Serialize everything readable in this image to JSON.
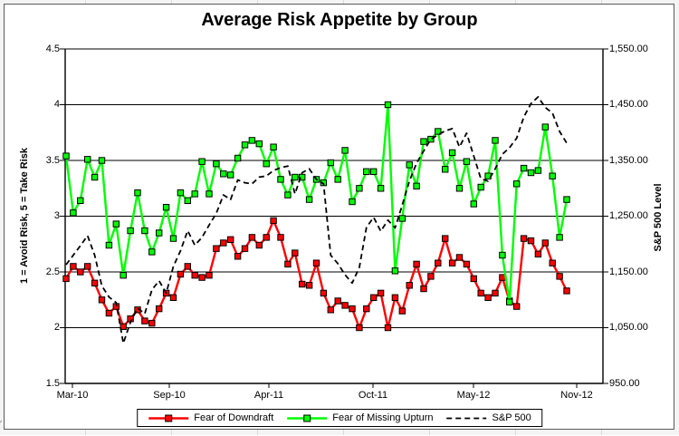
{
  "chart_data": {
    "type": "line",
    "title": "Average Risk Appetite by Group",
    "legend_position": "bottom",
    "grid": "horizontal",
    "left_axis": {
      "label": "1 = Avoid Risk, 5 = Take Risk",
      "range": [
        1.5,
        4.5
      ],
      "ticks": [
        "4.5",
        "4",
        "3.5",
        "3",
        "2.5",
        "2",
        "1.5"
      ]
    },
    "right_axis": {
      "label": "S&P 500 Level",
      "range": [
        950,
        1550
      ],
      "ticks": [
        "1,550.00",
        "1,450.00",
        "1,350.00",
        "1,250.00",
        "1,150.00",
        "1,050.00",
        "950.00"
      ]
    },
    "x_axis": {
      "tick_labels": [
        "Mar-10",
        "Sep-10",
        "Apr-11",
        "Oct-11",
        "May-12",
        "Nov-12"
      ]
    },
    "series": [
      {
        "name": "Fear of Downdraft",
        "color": "#ff0000",
        "marker": "square",
        "marker_border": "#000000",
        "axis": "left",
        "style": "solid",
        "values": [
          2.44,
          2.55,
          2.5,
          2.55,
          2.4,
          2.25,
          2.13,
          2.19,
          2.01,
          2.08,
          2.16,
          2.06,
          2.04,
          2.17,
          2.31,
          2.27,
          2.48,
          2.55,
          2.47,
          2.45,
          2.47,
          2.71,
          2.76,
          2.79,
          2.64,
          2.71,
          2.81,
          2.74,
          2.81,
          2.96,
          2.81,
          2.57,
          2.67,
          2.39,
          2.38,
          2.58,
          2.31,
          2.16,
          2.24,
          2.2,
          2.17,
          2.0,
          2.17,
          2.27,
          2.31,
          2.0,
          2.27,
          2.15,
          2.38,
          2.57,
          2.35,
          2.46,
          2.58,
          2.8,
          2.58,
          2.63,
          2.57,
          2.44,
          2.31,
          2.27,
          2.31,
          2.45,
          2.24,
          2.19,
          2.8,
          2.78,
          2.66,
          2.76,
          2.58,
          2.46,
          2.33
        ]
      },
      {
        "name": "Fear of Missing Upturn",
        "color": "#00ff00",
        "marker": "square",
        "marker_border": "#000000",
        "axis": "left",
        "style": "solid",
        "values": [
          3.54,
          3.03,
          3.14,
          3.51,
          3.35,
          3.5,
          2.74,
          2.93,
          2.47,
          2.87,
          3.21,
          2.87,
          2.68,
          2.85,
          3.08,
          2.8,
          3.21,
          3.14,
          3.2,
          3.49,
          3.2,
          3.47,
          3.38,
          3.37,
          3.52,
          3.64,
          3.68,
          3.65,
          3.47,
          3.62,
          3.33,
          3.19,
          3.35,
          3.35,
          3.15,
          3.33,
          3.3,
          3.48,
          3.33,
          3.59,
          3.13,
          3.25,
          3.4,
          3.4,
          3.25,
          4.0,
          2.51,
          2.98,
          3.46,
          3.27,
          3.67,
          3.69,
          3.76,
          3.42,
          3.57,
          3.25,
          3.49,
          3.11,
          3.26,
          3.36,
          3.68,
          2.65,
          2.23,
          3.29,
          3.43,
          3.39,
          3.41,
          3.8,
          3.36,
          2.81,
          3.15
        ]
      },
      {
        "name": "S&P 500",
        "color": "#000000",
        "marker": "none",
        "axis": "right",
        "style": "dashed",
        "values": [
          1163,
          1180,
          1197,
          1215,
          1180,
          1125,
          1105,
          1095,
          1022,
          1060,
          1085,
          1075,
          1118,
          1134,
          1112,
          1160,
          1188,
          1224,
          1198,
          1212,
          1234,
          1255,
          1288,
          1280,
          1315,
          1310,
          1308,
          1320,
          1322,
          1332,
          1337,
          1340,
          1290,
          1328,
          1335,
          1316,
          1308,
          1180,
          1165,
          1145,
          1130,
          1158,
          1230,
          1248,
          1223,
          1243,
          1229,
          1270,
          1313,
          1345,
          1367,
          1388,
          1396,
          1403,
          1407,
          1374,
          1399,
          1358,
          1317,
          1313,
          1335,
          1361,
          1373,
          1390,
          1428,
          1452,
          1464,
          1445,
          1435,
          1402,
          1381
        ]
      }
    ]
  }
}
